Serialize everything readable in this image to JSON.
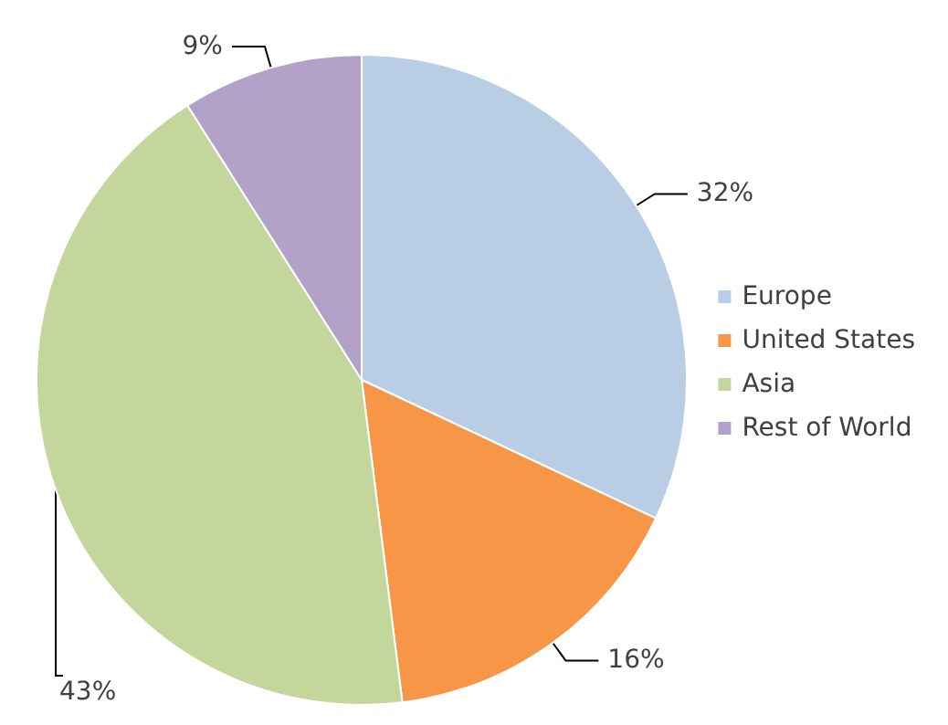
{
  "chart_data": {
    "type": "pie",
    "categories": [
      "Europe",
      "United States",
      "Asia",
      "Rest of World"
    ],
    "values": [
      32,
      16,
      43,
      9
    ],
    "value_labels": [
      "32%",
      "16%",
      "43%",
      "9%"
    ],
    "colors": [
      "#b9cde5",
      "#f79646",
      "#c3d69b",
      "#b3a2c7"
    ],
    "legend": "right"
  }
}
